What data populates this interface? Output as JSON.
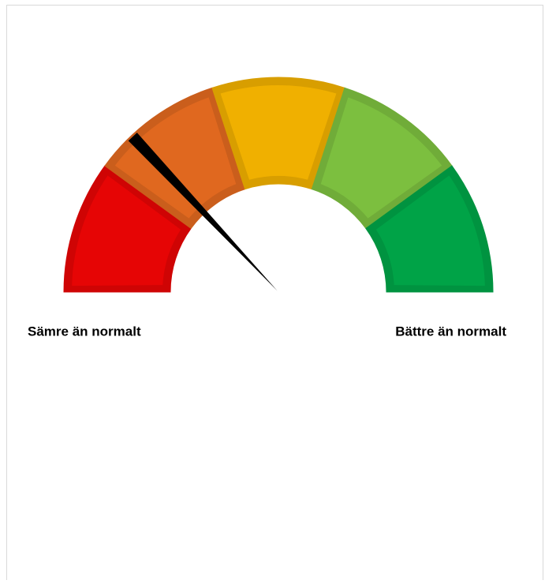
{
  "chart_data": {
    "type": "gauge",
    "segments": [
      {
        "value": 20,
        "color": "#e60505"
      },
      {
        "value": 20,
        "color": "#e0681f"
      },
      {
        "value": 20,
        "color": "#f0b000"
      },
      {
        "value": 20,
        "color": "#7cbf3f"
      },
      {
        "value": 20,
        "color": "#00a347"
      }
    ],
    "ylim": [
      0,
      100
    ],
    "value": 26,
    "needle_color": "#000000",
    "min_label": "Sämre än normalt",
    "max_label": "Bättre än normalt"
  }
}
